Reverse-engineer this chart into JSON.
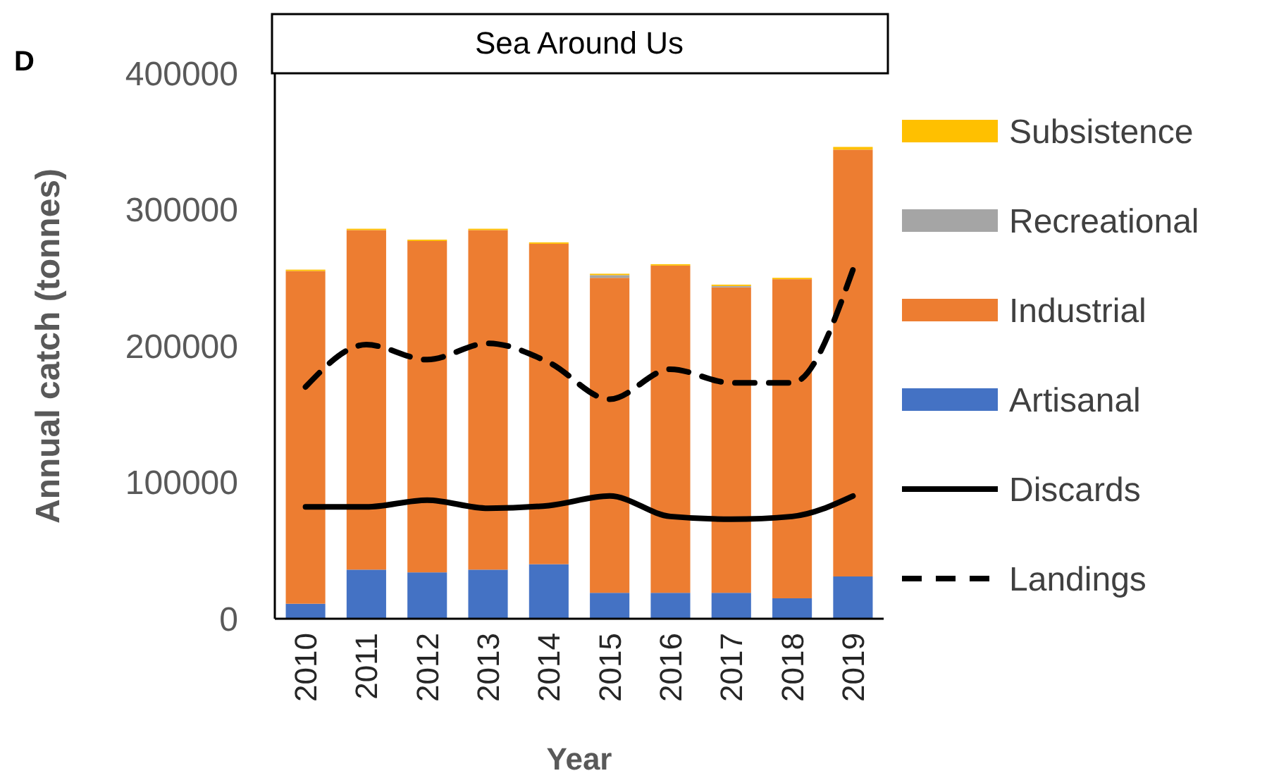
{
  "chart_data": {
    "type": "bar",
    "title": "Sea Around Us",
    "ylabel": "Annual catch (tonnes)",
    "xlabel": "Year",
    "annotations": [
      "D"
    ],
    "categories": [
      "2010",
      "2011",
      "2012",
      "2013",
      "2014",
      "2015",
      "2016",
      "2017",
      "2018",
      "2019"
    ],
    "stacked": true,
    "ylim": [
      0,
      400000
    ],
    "yticks": [
      0,
      100000,
      200000,
      300000,
      400000
    ],
    "grid": false,
    "legend": "right",
    "series": [
      {
        "name": "Artisanal",
        "color": "#4472c4",
        "values": [
          11000,
          36000,
          34000,
          36000,
          40000,
          19000,
          19000,
          19000,
          15000,
          31000
        ]
      },
      {
        "name": "Industrial",
        "color": "#ed7d31",
        "values": [
          244000,
          249000,
          243000,
          249000,
          235000,
          231000,
          240000,
          224000,
          234000,
          313000
        ]
      },
      {
        "name": "Recreational",
        "color": "#a5a5a5",
        "values": [
          0,
          0,
          0,
          0,
          0,
          2000,
          0,
          1000,
          0,
          0
        ]
      },
      {
        "name": "Subsistence",
        "color": "#ffc000",
        "values": [
          1000,
          1000,
          1000,
          1000,
          1000,
          1000,
          1000,
          1000,
          1000,
          2000
        ]
      },
      {
        "name": "Discards",
        "type": "line",
        "color": "#000000",
        "line_style": "solid",
        "values": [
          82000,
          82000,
          87000,
          81000,
          83000,
          90000,
          75000,
          73000,
          75000,
          90000
        ]
      },
      {
        "name": "Landings",
        "type": "line",
        "color": "#000000",
        "line_style": "dashed",
        "values": [
          170000,
          201000,
          190000,
          202000,
          188000,
          161000,
          183000,
          173000,
          173000,
          256000
        ]
      }
    ]
  }
}
